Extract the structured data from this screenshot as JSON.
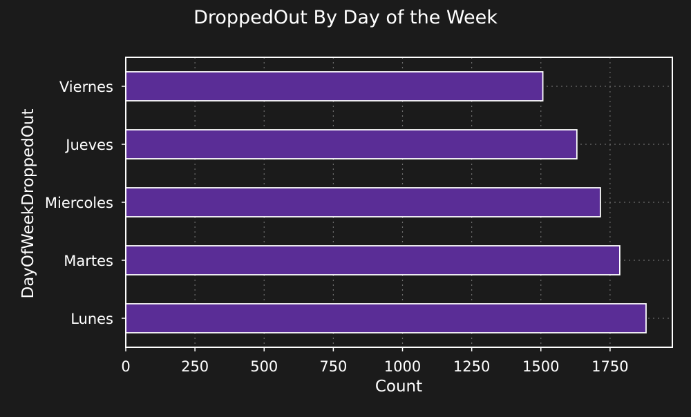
{
  "colors": {
    "background": "#1b1b1b",
    "bar_fill": "#5a2d96",
    "bar_edge": "#ffffff",
    "text": "#ffffff",
    "grid": "#6e6e6e",
    "frame": "#ffffff"
  },
  "chart_data": {
    "type": "bar",
    "orientation": "horizontal",
    "title": "DroppedOut By Day of the Week",
    "xlabel": "Count",
    "ylabel": "DayOfWeekDroppedOut",
    "categories": [
      "Lunes",
      "Martes",
      "Miercoles",
      "Jueves",
      "Viernes"
    ],
    "values": [
      1880,
      1785,
      1715,
      1630,
      1507
    ],
    "xlim": [
      0,
      1975
    ],
    "xticks": [
      0,
      250,
      500,
      750,
      1000,
      1250,
      1500,
      1750
    ],
    "xtick_labels": [
      "0",
      "250",
      "500",
      "750",
      "1000",
      "1250",
      "1500",
      "1750"
    ],
    "grid": true,
    "grid_style": "dotted",
    "legend": false
  }
}
